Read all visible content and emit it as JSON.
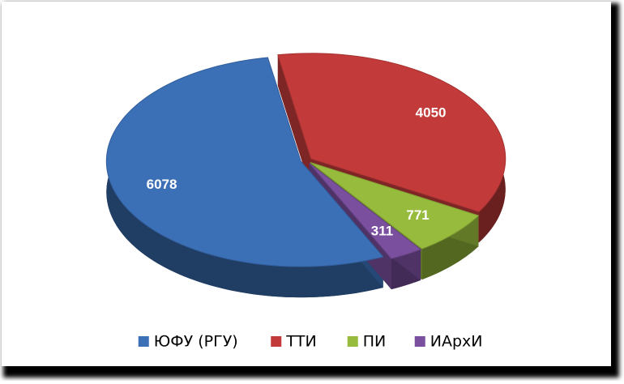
{
  "chart_data": {
    "type": "pie",
    "categories": [
      "ЮФУ (РГУ)",
      "ТТИ",
      "ПИ",
      "ИАрхИ"
    ],
    "values": [
      6078,
      4050,
      771,
      311
    ],
    "colors": [
      "#3b6fb6",
      "#c23b3a",
      "#97bb3c",
      "#7a4f9e"
    ],
    "legend": "bottom"
  }
}
